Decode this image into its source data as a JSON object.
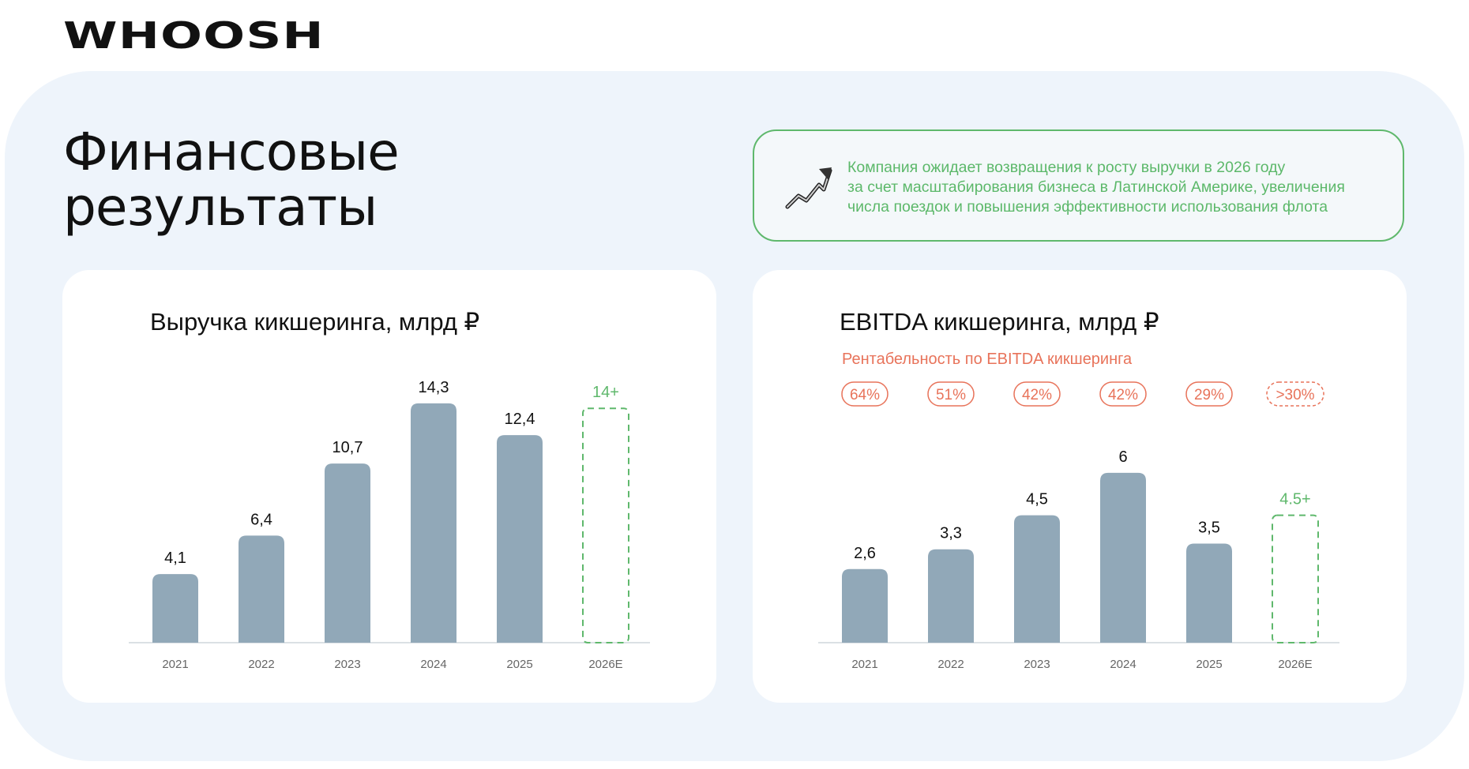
{
  "brand": {
    "logo": "WHOOSH"
  },
  "page": {
    "title": "Финансовые\nрезультаты"
  },
  "note": {
    "icon": "trend-up-arrow-icon",
    "text": "Компания ожидает возвращения к росту выручки в 2026 году\nза счет масштабирования бизнеса в Латинской Америке, увеличения\nчисла поездок и повышения эффективности использования флота"
  },
  "colors": {
    "bar": "#91a8b8",
    "forecast": "#5fb86c",
    "margin": "#e8735a",
    "panel": "#eef4fb"
  },
  "chart_data": [
    {
      "type": "bar",
      "title": "Выручка кикшеринга, млрд ₽",
      "categories": [
        "2021",
        "2022",
        "2023",
        "2024",
        "2025",
        "2026E"
      ],
      "values": [
        4.1,
        6.4,
        10.7,
        14.3,
        12.4,
        14
      ],
      "labels": [
        "4,1",
        "6,4",
        "10,7",
        "14,3",
        "12,4",
        "14+"
      ],
      "forecast_index": 5,
      "ylim": [
        0,
        15
      ]
    },
    {
      "type": "bar",
      "title": "EBITDA кикшеринга, млрд ₽",
      "subtitle": "Рентабельность по EBITDA кикшеринга",
      "categories": [
        "2021",
        "2022",
        "2023",
        "2024",
        "2025",
        "2026E"
      ],
      "values": [
        2.6,
        3.3,
        4.5,
        6,
        3.5,
        4.5
      ],
      "labels": [
        "2,6",
        "3,3",
        "4,5",
        "6",
        "3,5",
        "4.5+"
      ],
      "margins": [
        "64%",
        "51%",
        "42%",
        "42%",
        "29%",
        ">30%"
      ],
      "forecast_index": 5,
      "ylim": [
        0,
        6.75
      ]
    }
  ]
}
